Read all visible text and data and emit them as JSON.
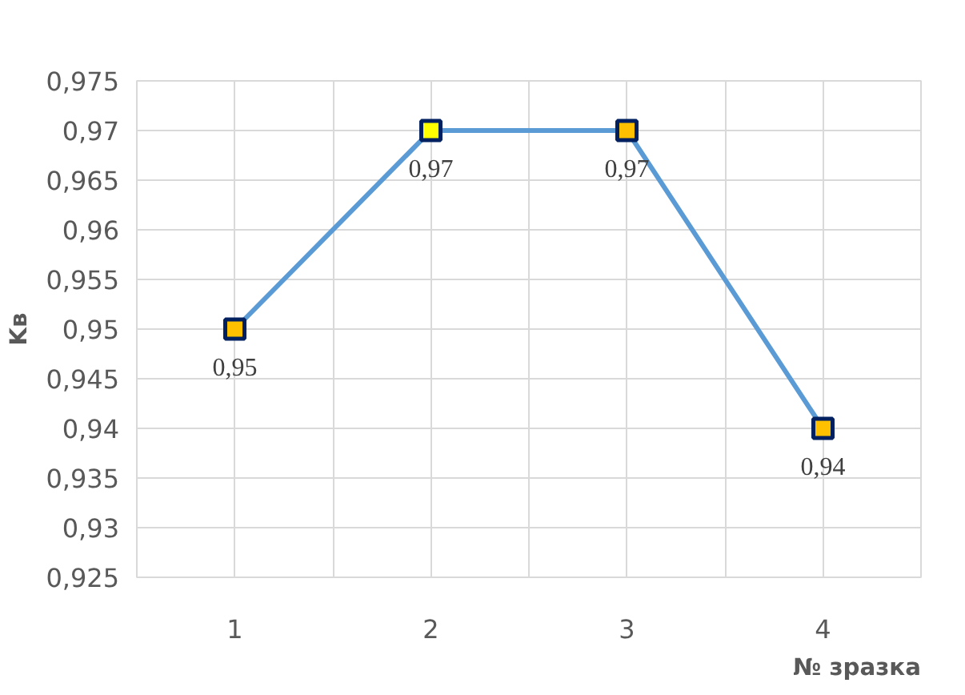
{
  "chart_data": {
    "type": "line",
    "xlabel": "№ зразка",
    "ylabel": "Kв",
    "categories": [
      "1",
      "2",
      "3",
      "4"
    ],
    "series": [
      {
        "color": "#5b9bd5",
        "colors": [
          "#ffc000",
          "#ffff00",
          "#ffc000",
          "#ffc000"
        ],
        "values": [
          0.95,
          0.97,
          0.97,
          0.94
        ],
        "value_labels": [
          "0,95",
          "0,97",
          "0,97",
          "0,94"
        ]
      }
    ],
    "ylim": [
      0.925,
      0.975
    ],
    "yticks": [
      {
        "value": 0.925,
        "label": "0,925"
      },
      {
        "value": 0.93,
        "label": "0,93"
      },
      {
        "value": 0.935,
        "label": "0,935"
      },
      {
        "value": 0.94,
        "label": "0,94"
      },
      {
        "value": 0.945,
        "label": "0,945"
      },
      {
        "value": 0.95,
        "label": "0,95"
      },
      {
        "value": 0.955,
        "label": "0,955"
      },
      {
        "value": 0.96,
        "label": "0,96"
      },
      {
        "value": 0.965,
        "label": "0,965"
      },
      {
        "value": 0.97,
        "label": "0,97"
      },
      {
        "value": 0.975,
        "label": "0,975"
      }
    ],
    "grid": true,
    "marker": "square",
    "line_style": "solid"
  }
}
